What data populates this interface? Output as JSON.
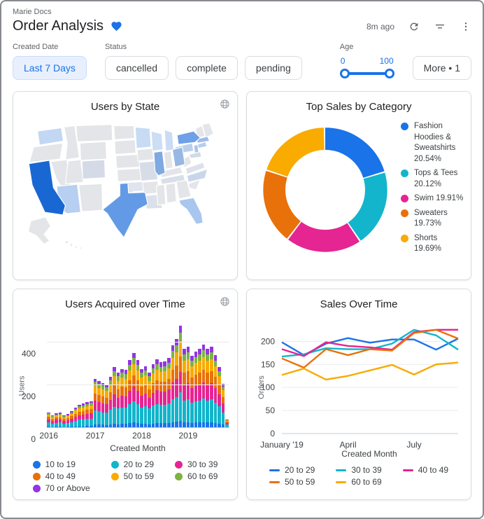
{
  "header": {
    "breadcrumb": "Marie Docs",
    "title": "Order Analysis",
    "updated": "8m ago"
  },
  "icons": {
    "favorite": "heart-icon",
    "refresh": "refresh-icon",
    "filter": "filter-icon",
    "menu": "kebab-menu-icon",
    "globe": "globe-icon"
  },
  "filters": {
    "created_date": {
      "label": "Created Date",
      "value": "Last 7 Days"
    },
    "status": {
      "label": "Status",
      "options": [
        "cancelled",
        "complete",
        "pending"
      ]
    },
    "age": {
      "label": "Age",
      "min": "0",
      "max": "100"
    },
    "more": {
      "label": "More • 1"
    }
  },
  "colors": {
    "accent": "#1a73e8",
    "blue": "#1a73e8",
    "teal": "#12b5cb",
    "pink": "#e52592",
    "orange": "#e8710a",
    "amber": "#f9ab00",
    "green": "#7cb342",
    "purple": "#9334e6"
  },
  "chart_data": [
    {
      "id": "usmap",
      "type": "choropleth",
      "title": "Users by State",
      "region": "United States",
      "note": "shade encodes users per state; darker blue = more users",
      "default_color": "#e4e5e8",
      "states": {
        "CA": "#1967d2",
        "TX": "#639ae6",
        "NY": "#6fa0e8",
        "IL": "#7fa9e2",
        "OH": "#98b8e4",
        "FL": "#a9c6ee",
        "MA": "#9fbbea",
        "NJ": "#aac4ec",
        "CT": "#b6cdf0",
        "AZ": "#b7cff0",
        "PA": "#bacfec",
        "WA": "#c2d7f3",
        "MN": "#c7dbf4",
        "MI": "#c9dcf3",
        "WI": "#ccdef5",
        "NC": "#c9d6ea",
        "MD": "#d0daea",
        "CO": "#d4dae7",
        "MO": "#d6dce8",
        "TN": "#d9dfe9",
        "LA": "#dbe0ea",
        "VA": "#dde1eb",
        "OK": "#e0e4ee",
        "SC": "#e2e5ea"
      }
    },
    {
      "id": "donut",
      "type": "pie",
      "donut": true,
      "title": "Top Sales by Category",
      "legend_position": "right",
      "labels": [
        "Fashion Hoodies & Sweatshirts",
        "Tops & Tees",
        "Swim",
        "Sweaters",
        "Shorts"
      ],
      "values": [
        20.54,
        20.12,
        19.91,
        19.73,
        19.69
      ],
      "colors": [
        "#1a73e8",
        "#12b5cb",
        "#e52592",
        "#e8710a",
        "#f9ab00"
      ]
    },
    {
      "id": "bars",
      "type": "bar",
      "stacked": true,
      "title": "Users Acquired over Time",
      "xlabel": "Created Month",
      "ylabel": "Users",
      "ylim": [
        0,
        500
      ],
      "y_ticks": [
        0,
        200,
        400
      ],
      "x_ticks": [
        "2016",
        "2017",
        "2018",
        "2019"
      ],
      "x_tick_positions": [
        0,
        12,
        24,
        36
      ],
      "categories": [
        "2016-01",
        "2016-02",
        "2016-03",
        "2016-04",
        "2016-05",
        "2016-06",
        "2016-07",
        "2016-08",
        "2016-09",
        "2016-10",
        "2016-11",
        "2016-12",
        "2017-01",
        "2017-02",
        "2017-03",
        "2017-04",
        "2017-05",
        "2017-06",
        "2017-07",
        "2017-08",
        "2017-09",
        "2017-10",
        "2017-11",
        "2017-12",
        "2018-01",
        "2018-02",
        "2018-03",
        "2018-04",
        "2018-05",
        "2018-06",
        "2018-07",
        "2018-08",
        "2018-09",
        "2018-10",
        "2018-11",
        "2018-12",
        "2019-01",
        "2019-02",
        "2019-03",
        "2019-04",
        "2019-05",
        "2019-06",
        "2019-07",
        "2019-08",
        "2019-09",
        "2019-10",
        "2019-11"
      ],
      "series": [
        {
          "name": "10 to 19",
          "color": "#1a73e8",
          "values": [
            5,
            4,
            5,
            5,
            4,
            5,
            5,
            7,
            8,
            8,
            9,
            9,
            16,
            16,
            15,
            14,
            17,
            20,
            18,
            19,
            19,
            22,
            25,
            22,
            19,
            20,
            18,
            21,
            23,
            22,
            22,
            23,
            27,
            29,
            34,
            26,
            27,
            24,
            25,
            26,
            27,
            26,
            27,
            24,
            20,
            15,
            3
          ]
        },
        {
          "name": "20 to 29",
          "color": "#12b5cb",
          "values": [
            21,
            17,
            19,
            20,
            17,
            18,
            22,
            27,
            30,
            32,
            34,
            35,
            65,
            62,
            59,
            57,
            67,
            80,
            73,
            78,
            76,
            89,
            99,
            89,
            78,
            82,
            73,
            85,
            90,
            86,
            87,
            92,
            109,
            117,
            134,
            104,
            107,
            95,
            100,
            104,
            110,
            104,
            107,
            96,
            81,
            58,
            12
          ]
        },
        {
          "name": "30 to 39",
          "color": "#e52592",
          "values": [
            15,
            12,
            14,
            14,
            12,
            13,
            16,
            19,
            22,
            23,
            24,
            25,
            46,
            44,
            42,
            41,
            48,
            57,
            52,
            56,
            54,
            64,
            70,
            64,
            56,
            58,
            52,
            60,
            64,
            62,
            62,
            66,
            78,
            84,
            96,
            74,
            76,
            68,
            72,
            74,
            78,
            74,
            76,
            68,
            58,
            42,
            8
          ]
        },
        {
          "name": "40 to 49",
          "color": "#e8710a",
          "values": [
            11,
            9,
            10,
            11,
            9,
            10,
            12,
            14,
            16,
            17,
            18,
            19,
            35,
            33,
            32,
            31,
            36,
            43,
            39,
            42,
            41,
            48,
            53,
            48,
            42,
            44,
            39,
            45,
            48,
            46,
            47,
            49,
            58,
            63,
            72,
            56,
            57,
            51,
            54,
            56,
            59,
            56,
            57,
            51,
            43,
            31,
            6
          ]
        },
        {
          "name": "50 to 59",
          "color": "#f9ab00",
          "values": [
            11,
            9,
            10,
            11,
            9,
            10,
            12,
            14,
            16,
            17,
            18,
            19,
            35,
            33,
            32,
            31,
            36,
            43,
            39,
            42,
            41,
            48,
            53,
            48,
            42,
            44,
            39,
            45,
            48,
            46,
            47,
            49,
            58,
            63,
            72,
            56,
            57,
            51,
            54,
            56,
            59,
            56,
            57,
            51,
            43,
            31,
            6
          ]
        },
        {
          "name": "60 to 69",
          "color": "#7cb342",
          "values": [
            6,
            5,
            5,
            6,
            5,
            5,
            6,
            8,
            9,
            9,
            10,
            10,
            19,
            18,
            17,
            16,
            19,
            23,
            21,
            22,
            22,
            25,
            28,
            25,
            22,
            23,
            21,
            24,
            26,
            25,
            25,
            26,
            31,
            33,
            38,
            30,
            31,
            27,
            29,
            30,
            31,
            30,
            31,
            27,
            23,
            17,
            3
          ]
        },
        {
          "name": "70 or Above",
          "color": "#9334e6",
          "values": [
            5,
            4,
            5,
            5,
            4,
            5,
            5,
            7,
            8,
            8,
            9,
            9,
            16,
            16,
            15,
            14,
            17,
            20,
            18,
            19,
            19,
            22,
            25,
            22,
            19,
            20,
            18,
            21,
            23,
            22,
            22,
            23,
            27,
            29,
            34,
            26,
            27,
            24,
            25,
            26,
            27,
            26,
            27,
            24,
            20,
            15,
            3
          ]
        }
      ]
    },
    {
      "id": "lines",
      "type": "line",
      "title": "Sales Over Time",
      "xlabel": "Created Month",
      "ylabel": "Orders",
      "ylim": [
        0,
        240
      ],
      "y_ticks": [
        0,
        50,
        100,
        150,
        200
      ],
      "x_ticks": [
        "January '19",
        "April",
        "July"
      ],
      "x_tick_positions": [
        0,
        3,
        6
      ],
      "categories": [
        "January '19",
        "February",
        "March",
        "April",
        "May",
        "June",
        "July",
        "August",
        "September"
      ],
      "series": [
        {
          "name": "20 to 29",
          "color": "#1a73e8",
          "values": [
            198,
            170,
            195,
            207,
            197,
            204,
            204,
            182,
            206
          ]
        },
        {
          "name": "30 to 39",
          "color": "#12b5cb",
          "values": [
            167,
            172,
            185,
            183,
            183,
            195,
            225,
            213,
            182
          ]
        },
        {
          "name": "40 to 49",
          "color": "#e52592",
          "values": [
            183,
            168,
            198,
            190,
            187,
            182,
            220,
            225,
            225
          ]
        },
        {
          "name": "50 to 59",
          "color": "#e8710a",
          "values": [
            163,
            143,
            183,
            170,
            183,
            180,
            218,
            225,
            206
          ]
        },
        {
          "name": "60 to 69",
          "color": "#f9ab00",
          "values": [
            127,
            141,
            117,
            125,
            137,
            149,
            128,
            150,
            154
          ]
        }
      ]
    }
  ]
}
